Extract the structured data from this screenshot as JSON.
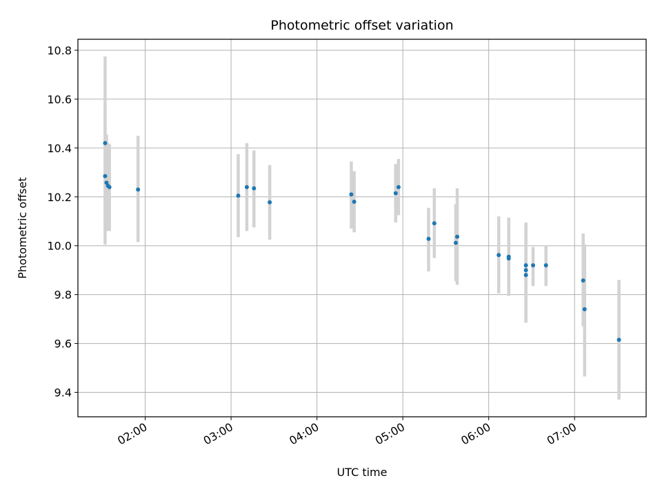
{
  "chart_data": {
    "type": "scatter",
    "title": "Photometric offset variation",
    "xlabel": "UTC time",
    "ylabel": "Photometric offset",
    "x_axis_type": "time",
    "xlim": [
      "01:13",
      "07:50"
    ],
    "ylim": [
      9.3,
      10.845
    ],
    "x_ticks": [
      "02:00",
      "03:00",
      "04:00",
      "05:00",
      "06:00",
      "07:00"
    ],
    "y_ticks": [
      9.4,
      9.6,
      9.8,
      10.0,
      10.2,
      10.4,
      10.6,
      10.8
    ],
    "y_tick_labels": [
      "9.4",
      "9.6",
      "9.8",
      "10.0",
      "10.2",
      "10.4",
      "10.6",
      "10.8"
    ],
    "grid": true,
    "colors": {
      "point": "#1f77b4",
      "errorbar": "#d3d3d3",
      "grid": "#b0b0b0"
    },
    "points": [
      {
        "x": "01:32",
        "y": 10.42,
        "err_low": 10.06,
        "err_high": 10.775
      },
      {
        "x": "01:32",
        "y": 10.285,
        "err_low": 10.005,
        "err_high": 10.565
      },
      {
        "x": "01:33",
        "y": 10.258,
        "err_low": 10.06,
        "err_high": 10.455
      },
      {
        "x": "01:34",
        "y": 10.245,
        "err_low": 10.07,
        "err_high": 10.42
      },
      {
        "x": "01:35",
        "y": 10.24,
        "err_low": 10.06,
        "err_high": 10.415
      },
      {
        "x": "01:55",
        "y": 10.23,
        "err_low": 10.015,
        "err_high": 10.45
      },
      {
        "x": "03:05",
        "y": 10.205,
        "err_low": 10.035,
        "err_high": 10.375
      },
      {
        "x": "03:11",
        "y": 10.24,
        "err_low": 10.06,
        "err_high": 10.42
      },
      {
        "x": "03:16",
        "y": 10.235,
        "err_low": 10.075,
        "err_high": 10.39
      },
      {
        "x": "03:27",
        "y": 10.178,
        "err_low": 10.025,
        "err_high": 10.33
      },
      {
        "x": "04:24",
        "y": 10.21,
        "err_low": 10.07,
        "err_high": 10.345
      },
      {
        "x": "04:26",
        "y": 10.18,
        "err_low": 10.055,
        "err_high": 10.305
      },
      {
        "x": "04:55",
        "y": 10.215,
        "err_low": 10.095,
        "err_high": 10.335
      },
      {
        "x": "04:57",
        "y": 10.24,
        "err_low": 10.125,
        "err_high": 10.355
      },
      {
        "x": "05:18",
        "y": 10.028,
        "err_low": 9.895,
        "err_high": 10.155
      },
      {
        "x": "05:22",
        "y": 10.092,
        "err_low": 9.95,
        "err_high": 10.235
      },
      {
        "x": "05:37",
        "y": 10.012,
        "err_low": 9.855,
        "err_high": 10.17
      },
      {
        "x": "05:38",
        "y": 10.037,
        "err_low": 9.84,
        "err_high": 10.235
      },
      {
        "x": "06:07",
        "y": 9.962,
        "err_low": 9.805,
        "err_high": 10.12
      },
      {
        "x": "06:14",
        "y": 9.955,
        "err_low": 9.795,
        "err_high": 10.115
      },
      {
        "x": "06:14",
        "y": 9.948,
        "err_low": 9.795,
        "err_high": 10.1
      },
      {
        "x": "06:26",
        "y": 9.92,
        "err_low": 9.7,
        "err_high": 10.095
      },
      {
        "x": "06:26",
        "y": 9.9,
        "err_low": 9.7,
        "err_high": 10.09
      },
      {
        "x": "06:26",
        "y": 9.88,
        "err_low": 9.685,
        "err_high": 10.075
      },
      {
        "x": "06:31",
        "y": 9.92,
        "err_low": 9.835,
        "err_high": 9.995
      },
      {
        "x": "06:40",
        "y": 9.92,
        "err_low": 9.835,
        "err_high": 10.0
      },
      {
        "x": "07:06",
        "y": 9.858,
        "err_low": 9.67,
        "err_high": 10.05
      },
      {
        "x": "07:07",
        "y": 9.74,
        "err_low": 9.465,
        "err_high": 10.005
      },
      {
        "x": "07:31",
        "y": 9.615,
        "err_low": 9.37,
        "err_high": 9.86
      }
    ]
  }
}
